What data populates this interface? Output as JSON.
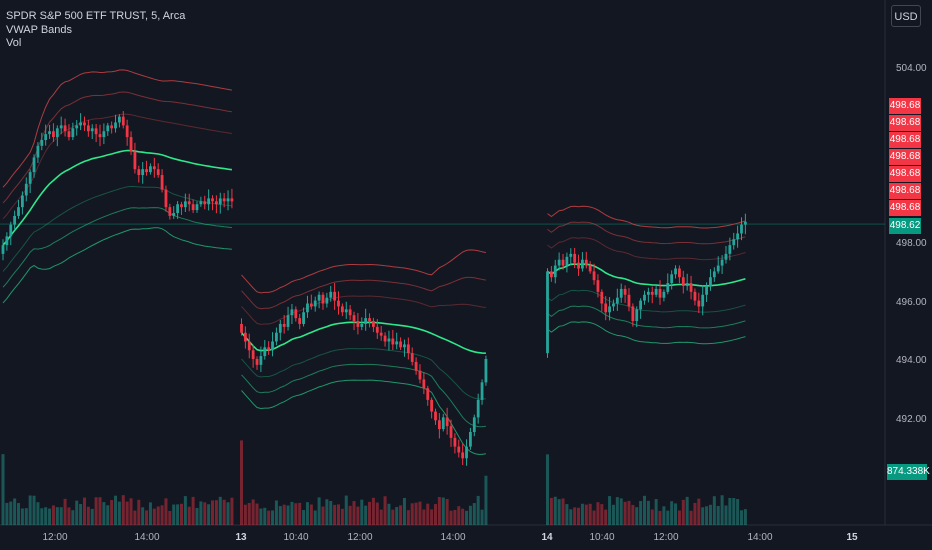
{
  "header": {
    "symbol_line": "SPDR S&P 500 ETF TRUST, 5, Arca",
    "indicator_1": "VWAP Bands",
    "indicator_2": "Vol"
  },
  "currency_button": "USD",
  "price_tags": [
    {
      "label": "498.68",
      "color": "#f23645"
    },
    {
      "label": "498.68",
      "color": "#f23645"
    },
    {
      "label": "498.68",
      "color": "#f23645"
    },
    {
      "label": "498.68",
      "color": "#f23645"
    },
    {
      "label": "498.68",
      "color": "#f23645"
    },
    {
      "label": "498.68",
      "color": "#f23645"
    },
    {
      "label": "498.68",
      "color": "#f23645"
    },
    {
      "label": "498.62",
      "color": "#089981"
    }
  ],
  "volume_tag": {
    "label": "874.338K",
    "color": "#089981"
  },
  "colors": {
    "background": "#131722",
    "up": "#089981",
    "down": "#f23645",
    "up_candle": "#26a69a",
    "vwap": "#2ee88a",
    "band_red": "#e04a4a",
    "band_green": "#26c281"
  },
  "chart_data": {
    "type": "candlestick",
    "symbol": "SPDR S&P 500 ETF TRUST",
    "interval": "5",
    "exchange": "Arca",
    "y_axis": {
      "side": "right",
      "ticks": [
        504.0,
        498.0,
        496.0,
        494.0,
        492.0
      ],
      "tick_labels": [
        "504.00",
        "498.00",
        "496.00",
        "494.00",
        "492.00"
      ],
      "ylim": [
        489.5,
        505.3
      ]
    },
    "x_axis": {
      "tick_labels": [
        "12:00",
        "14:00",
        "13",
        "10:40",
        "12:00",
        "14:00",
        "14",
        "10:40",
        "12:00",
        "14:00",
        "15"
      ],
      "bold_labels": [
        "13",
        "14",
        "15"
      ]
    },
    "last_price": 498.62,
    "sessions": [
      {
        "day": "12",
        "closes": [
          497.9,
          498.2,
          498.6,
          498.9,
          499.2,
          499.6,
          500.0,
          500.4,
          500.9,
          501.3,
          501.5,
          501.7,
          501.8,
          501.6,
          501.9,
          502.0,
          501.8,
          501.6,
          501.9,
          502.0,
          502.1,
          502.0,
          501.8,
          501.9,
          501.7,
          501.6,
          501.8,
          502.0,
          501.9,
          502.1,
          502.3,
          502.0,
          501.6,
          501.1,
          500.5,
          500.3,
          500.5,
          500.4,
          500.6,
          500.5,
          500.3,
          499.8,
          499.2,
          498.9,
          499.0,
          499.3,
          499.2,
          499.4,
          499.3,
          499.1,
          499.3,
          499.4,
          499.3,
          499.5,
          499.4,
          499.3,
          499.5,
          499.4,
          499.5,
          499.4
        ]
      },
      {
        "day": "13",
        "closes": [
          494.9,
          494.6,
          494.3,
          494.0,
          493.8,
          494.1,
          494.4,
          494.3,
          494.6,
          494.9,
          495.2,
          495.1,
          495.5,
          495.7,
          495.4,
          495.2,
          495.6,
          495.9,
          495.8,
          496.0,
          496.2,
          495.9,
          496.1,
          496.3,
          496.0,
          495.8,
          495.6,
          495.7,
          495.5,
          495.3,
          495.1,
          495.2,
          495.4,
          495.3,
          495.1,
          494.9,
          494.8,
          494.6,
          494.7,
          494.5,
          494.6,
          494.4,
          494.5,
          494.2,
          493.9,
          493.6,
          493.3,
          493.0,
          492.6,
          492.2,
          491.9,
          491.6,
          492.0,
          491.7,
          491.3,
          491.0,
          490.8,
          490.6,
          491.0,
          491.5,
          492.0,
          492.6,
          493.2,
          494.0
        ]
      },
      {
        "day": "14",
        "closes": [
          497.0,
          496.8,
          497.2,
          497.4,
          497.2,
          497.5,
          497.6,
          497.3,
          497.1,
          497.4,
          497.2,
          497.0,
          496.7,
          496.3,
          495.9,
          495.6,
          495.8,
          495.9,
          496.1,
          496.4,
          496.2,
          495.8,
          495.3,
          495.7,
          496.0,
          496.2,
          496.3,
          496.2,
          496.4,
          496.1,
          496.3,
          496.6,
          496.9,
          497.1,
          496.8,
          496.5,
          496.6,
          496.3,
          496.0,
          495.8,
          496.2,
          496.5,
          496.8,
          497.0,
          497.2,
          497.4,
          497.6,
          497.9,
          498.1,
          498.3,
          498.6,
          498.7
        ]
      }
    ]
  }
}
